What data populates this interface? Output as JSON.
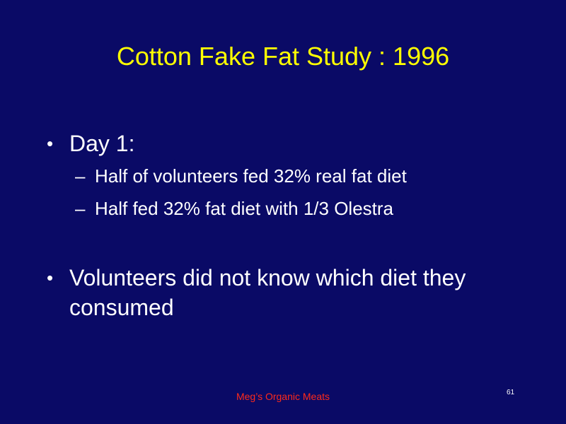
{
  "slide": {
    "title": "Cotton Fake Fat Study : 1996",
    "bullets": [
      {
        "marker": "•",
        "text": "Day 1:",
        "subitems": [
          {
            "marker": "–",
            "text": "Half of volunteers fed 32% real fat diet"
          },
          {
            "marker": "–",
            "text": "Half fed 32% fat diet with 1/3 Olestra"
          }
        ]
      },
      {
        "marker": "•",
        "text": "Volunteers did not know which diet they consumed"
      }
    ],
    "footer": "Meg’s  Organic  Meats",
    "page_number": "61"
  },
  "colors": {
    "background": "#0a0a66",
    "title": "#ffff00",
    "body_text": "#ffffff",
    "footer_text": "#ff2a1a"
  }
}
